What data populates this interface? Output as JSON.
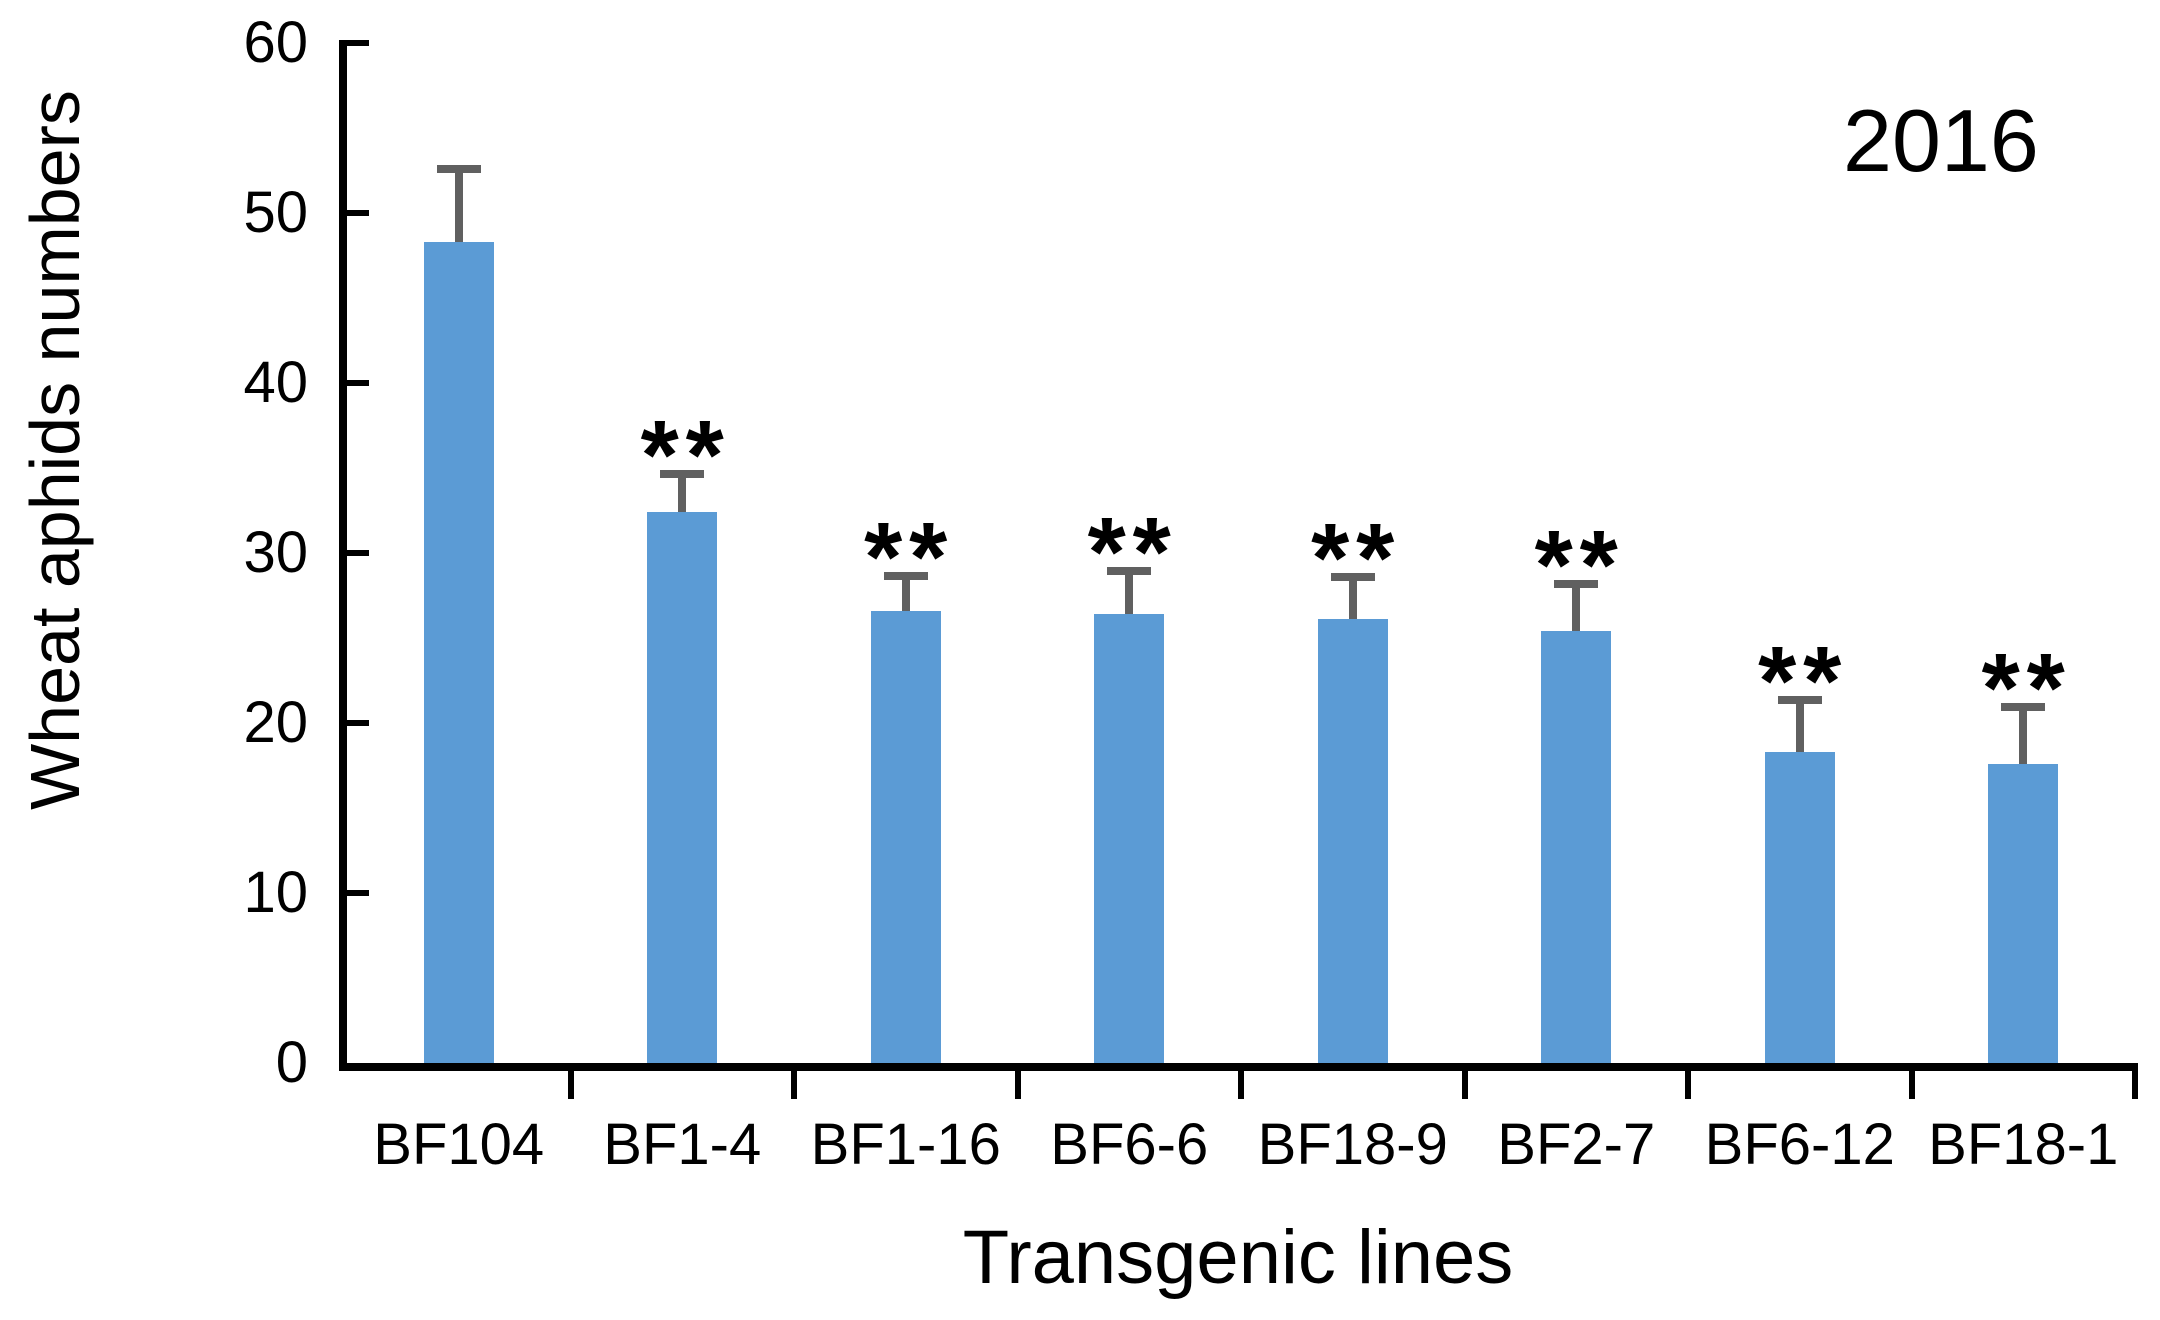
{
  "chart_data": {
    "type": "bar",
    "title": "",
    "annotation": "2016",
    "xlabel": "Transgenic lines",
    "ylabel": "Wheat aphids numbers",
    "categories": [
      "BF104",
      "BF1-4",
      "BF1-16",
      "BF6-6",
      "BF18-9",
      "BF2-7",
      "BF6-12",
      "BF18-1"
    ],
    "values": [
      48.3,
      32.4,
      26.6,
      26.4,
      26.1,
      25.4,
      18.3,
      17.6
    ],
    "errors_plus": [
      4.5,
      2.5,
      2.3,
      2.8,
      2.7,
      3.0,
      3.3,
      3.6
    ],
    "significance": [
      "",
      "**",
      "**",
      "**",
      "**",
      "**",
      "**",
      "**"
    ],
    "ylim": [
      0,
      60
    ],
    "yticks": [
      0,
      10,
      20,
      30,
      40,
      50,
      60
    ],
    "grid": "off",
    "legend": "none",
    "bar_color": "#5B9BD5",
    "error_bar_color": "#606060",
    "axis_color": "#000000",
    "text_color": "#000000"
  }
}
